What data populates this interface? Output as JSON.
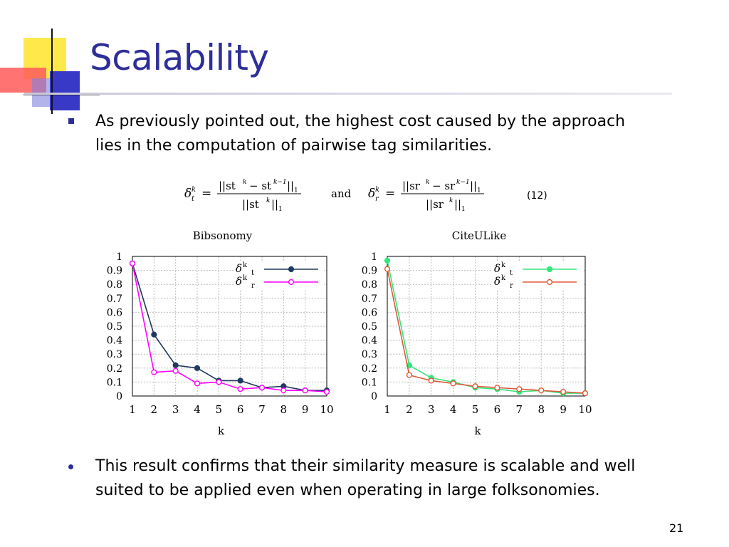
{
  "slide": {
    "title": "Scalability",
    "bullets": [
      "As previously pointed out, the highest cost caused by the approach lies in the computation of pairwise tag similarities.",
      "This result confirms that their similarity measure is scalable and well suited to be applied even when operating in large folksonomies."
    ],
    "equation": {
      "and_label": "and",
      "number": "(12)"
    },
    "page_number": "21",
    "colors": {
      "title": "#2e2e9a",
      "bullet": "#2e2e9a"
    }
  },
  "chart_data": [
    {
      "type": "line",
      "title": "Bibsonomy",
      "xlabel": "k",
      "ylabel": "",
      "x": [
        1,
        2,
        3,
        4,
        5,
        6,
        7,
        8,
        9,
        10
      ],
      "xlim": [
        1,
        10
      ],
      "ylim": [
        0,
        1
      ],
      "yticks": [
        "0",
        "0.1",
        "0.2",
        "0.3",
        "0.4",
        "0.5",
        "0.6",
        "0.7",
        "0.8",
        "0.9",
        "1"
      ],
      "xticks": [
        "1",
        "2",
        "3",
        "4",
        "5",
        "6",
        "7",
        "8",
        "9",
        "10"
      ],
      "grid": true,
      "legend": "top-right",
      "series": [
        {
          "name": "δkt",
          "symbol": "δ",
          "sup": "k",
          "sub": "t",
          "color": "#1f3a5f",
          "marker": "filled",
          "values": [
            0.95,
            0.44,
            0.22,
            0.2,
            0.11,
            0.11,
            0.06,
            0.07,
            0.04,
            0.04
          ]
        },
        {
          "name": "δkr",
          "symbol": "δ",
          "sup": "k",
          "sub": "r",
          "color": "#ff00ff",
          "marker": "open",
          "values": [
            0.95,
            0.17,
            0.18,
            0.09,
            0.1,
            0.05,
            0.06,
            0.04,
            0.04,
            0.03
          ]
        }
      ]
    },
    {
      "type": "line",
      "title": "CiteULike",
      "xlabel": "k",
      "ylabel": "",
      "x": [
        1,
        2,
        3,
        4,
        5,
        6,
        7,
        8,
        9,
        10
      ],
      "xlim": [
        1,
        10
      ],
      "ylim": [
        0,
        1
      ],
      "yticks": [
        "0",
        "0.1",
        "0.2",
        "0.3",
        "0.4",
        "0.5",
        "0.6",
        "0.7",
        "0.8",
        "0.9",
        "1"
      ],
      "xticks": [
        "1",
        "2",
        "3",
        "4",
        "5",
        "6",
        "7",
        "8",
        "9",
        "10"
      ],
      "grid": true,
      "legend": "top-right",
      "series": [
        {
          "name": "δkt",
          "symbol": "δ",
          "sup": "k",
          "sub": "t",
          "color": "#33e67a",
          "marker": "filled",
          "values": [
            0.97,
            0.22,
            0.13,
            0.1,
            0.06,
            0.05,
            0.03,
            0.04,
            0.02,
            0.02
          ]
        },
        {
          "name": "δkr",
          "symbol": "δ",
          "sup": "k",
          "sub": "r",
          "color": "#e05a3a",
          "marker": "open",
          "values": [
            0.91,
            0.15,
            0.11,
            0.09,
            0.07,
            0.06,
            0.05,
            0.04,
            0.03,
            0.02
          ]
        }
      ]
    }
  ]
}
